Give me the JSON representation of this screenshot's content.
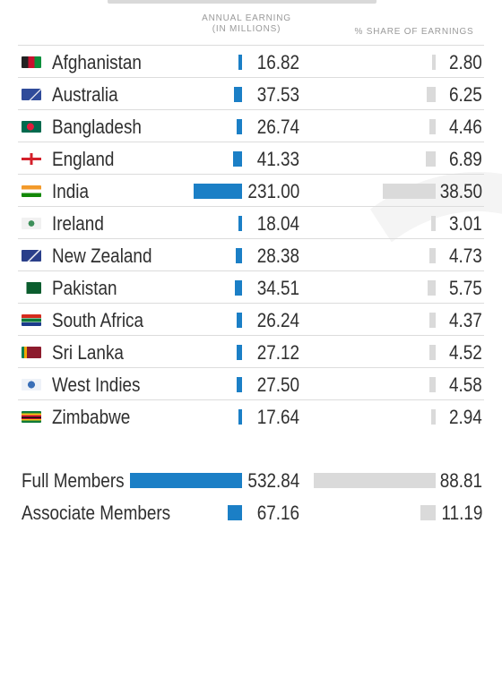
{
  "chart_data": {
    "type": "table",
    "columns": [
      "",
      "ANNUAL EARNING\n(IN MILLIONS)",
      "% SHARE OF EARNINGS"
    ],
    "header_col1_line1": "ANNUAL EARNING",
    "header_col1_line2": "(IN MILLIONS)",
    "header_col2": "% SHARE OF EARNINGS",
    "rows": [
      {
        "name": "Afghanistan",
        "earning": 16.82,
        "earning_text": "16.82",
        "share": 2.8,
        "share_text": "2.80",
        "flag": "afghanistan-flag-icon"
      },
      {
        "name": "Australia",
        "earning": 37.53,
        "earning_text": "37.53",
        "share": 6.25,
        "share_text": "6.25",
        "flag": "australia-flag-icon"
      },
      {
        "name": "Bangladesh",
        "earning": 26.74,
        "earning_text": "26.74",
        "share": 4.46,
        "share_text": "4.46",
        "flag": "bangladesh-flag-icon"
      },
      {
        "name": "England",
        "earning": 41.33,
        "earning_text": "41.33",
        "share": 6.89,
        "share_text": "6.89",
        "flag": "england-flag-icon"
      },
      {
        "name": "India",
        "earning": 231.0,
        "earning_text": "231.00",
        "share": 38.5,
        "share_text": "38.50",
        "flag": "india-flag-icon"
      },
      {
        "name": "Ireland",
        "earning": 18.04,
        "earning_text": "18.04",
        "share": 3.01,
        "share_text": "3.01",
        "flag": "ireland-cricket-icon"
      },
      {
        "name": "New Zealand",
        "earning": 28.38,
        "earning_text": "28.38",
        "share": 4.73,
        "share_text": "4.73",
        "flag": "new-zealand-flag-icon"
      },
      {
        "name": "Pakistan",
        "earning": 34.51,
        "earning_text": "34.51",
        "share": 5.75,
        "share_text": "5.75",
        "flag": "pakistan-flag-icon"
      },
      {
        "name": "South Africa",
        "earning": 26.24,
        "earning_text": "26.24",
        "share": 4.37,
        "share_text": "4.37",
        "flag": "south-africa-flag-icon"
      },
      {
        "name": "Sri Lanka",
        "earning": 27.12,
        "earning_text": "27.12",
        "share": 4.52,
        "share_text": "4.52",
        "flag": "sri-lanka-flag-icon"
      },
      {
        "name": "West Indies",
        "earning": 27.5,
        "earning_text": "27.50",
        "share": 4.58,
        "share_text": "4.58",
        "flag": "west-indies-cricket-icon"
      },
      {
        "name": "Zimbabwe",
        "earning": 17.64,
        "earning_text": "17.64",
        "share": 2.94,
        "share_text": "2.94",
        "flag": "zimbabwe-flag-icon"
      }
    ],
    "totals": [
      {
        "name": "Full Members",
        "earning": 532.84,
        "earning_text": "532.84",
        "share": 88.81,
        "share_text": "88.81"
      },
      {
        "name": "Associate Members",
        "earning": 67.16,
        "earning_text": "67.16",
        "share": 11.19,
        "share_text": "11.19"
      }
    ],
    "bar_colors": {
      "earning": "#1b7fc6",
      "share": "#dadada"
    }
  }
}
